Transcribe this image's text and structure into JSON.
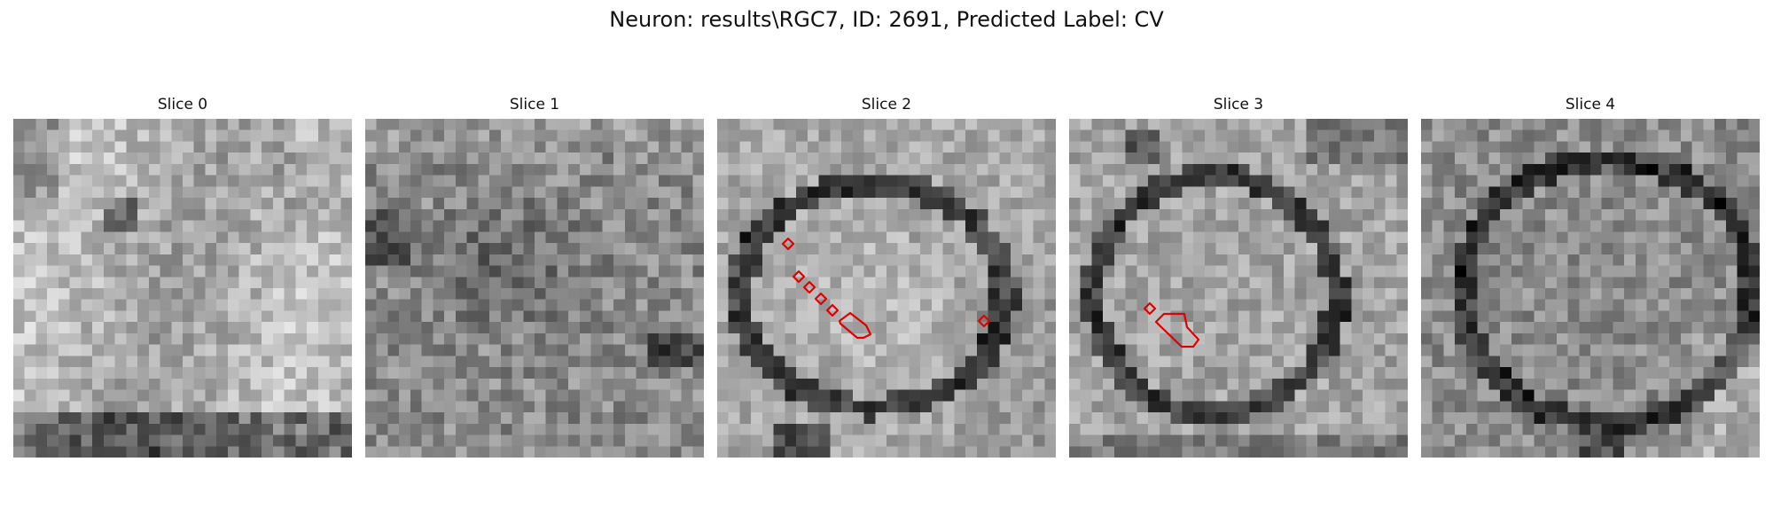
{
  "figure": {
    "title": "Neuron: results\\RGC7, ID: 2691, Predicted Label: CV"
  },
  "panels": [
    {
      "title": "Slice 0",
      "image_name": "em-slice-0-image",
      "overlay": false,
      "grid_size": 30
    },
    {
      "title": "Slice 1",
      "image_name": "em-slice-1-image",
      "overlay": false,
      "grid_size": 30
    },
    {
      "title": "Slice 2",
      "image_name": "em-slice-2-image",
      "overlay": true,
      "grid_size": 30,
      "overlay_color": "#e00000"
    },
    {
      "title": "Slice 3",
      "image_name": "em-slice-3-image",
      "overlay": true,
      "grid_size": 30,
      "overlay_color": "#e00000"
    },
    {
      "title": "Slice 4",
      "image_name": "em-slice-4-image",
      "overlay": false,
      "grid_size": 30
    }
  ],
  "colors": {
    "background": "#ffffff",
    "overlay": "#e00000"
  }
}
